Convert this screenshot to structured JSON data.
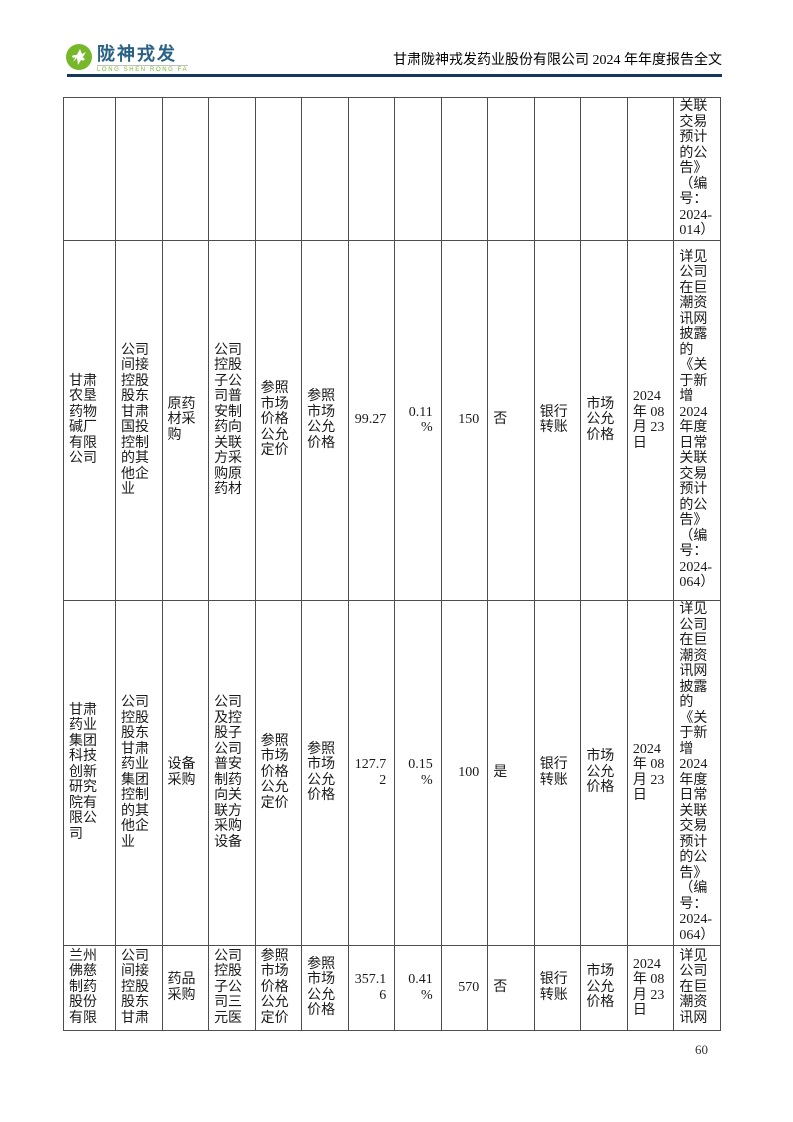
{
  "header": {
    "logo": {
      "brand_cn": "陇神戎发",
      "brand_en": "LONG SHEN RONG FA",
      "circle_color": "#76b82a",
      "brand_color": "#2a6286"
    },
    "title": "甘肃陇神戎发药业股份有限公司 2024 年年度报告全文",
    "rule_color": "#17365d"
  },
  "table": {
    "numeric_columns": [
      6,
      7,
      8
    ],
    "rows": [
      {
        "cells": [
          "",
          "",
          "",
          "",
          "",
          "",
          "",
          "",
          "",
          "",
          "",
          "",
          "",
          "关联交易预计的公告》（编号：2024-014）"
        ]
      },
      {
        "cells": [
          "甘肃农垦药物碱厂有限公司",
          "公司间接控股股东甘肃国投控制的其他企业",
          "原药材采购",
          "公司控股子公司普安制药向关联方采购原药材",
          "参照市场价格公允定价",
          "参照市场公允价格",
          "99.27",
          "0.11%",
          "150",
          "否",
          "银行转账",
          "市场公允价格",
          "2024 年 08 月 23 日",
          "详见公司在巨潮资讯网披露的《关于新增2024年度日常关联交易预计的公告》（编号：2024-064）"
        ]
      },
      {
        "cells": [
          "甘肃药业集团科技创新研究院有限公司",
          "公司控股股东甘肃药业集团控制的其他企业",
          "设备采购",
          "公司及控股子公司普安制药向关联方采购设备",
          "参照市场价格公允定价",
          "参照市场公允价格",
          "127.72",
          "0.15%",
          "100",
          "是",
          "银行转账",
          "市场公允价格",
          "2024 年 08 月 23 日",
          "详见公司在巨潮资讯网披露的《关于新增2024年度日常关联交易预计的公告》（编号：2024-064）"
        ]
      },
      {
        "cells": [
          "兰州佛慈制药股份有限",
          "公司间接控股股东甘肃",
          "药品采购",
          "公司控股子公司三元医",
          "参照市场价格公允定价",
          "参照市场公允价格",
          "357.16",
          "0.41%",
          "570",
          "否",
          "银行转账",
          "市场公允价格",
          "2024 年 08 月 23 日",
          "详见公司在巨潮资讯网"
        ]
      }
    ]
  },
  "footer": {
    "page_number": "60"
  }
}
